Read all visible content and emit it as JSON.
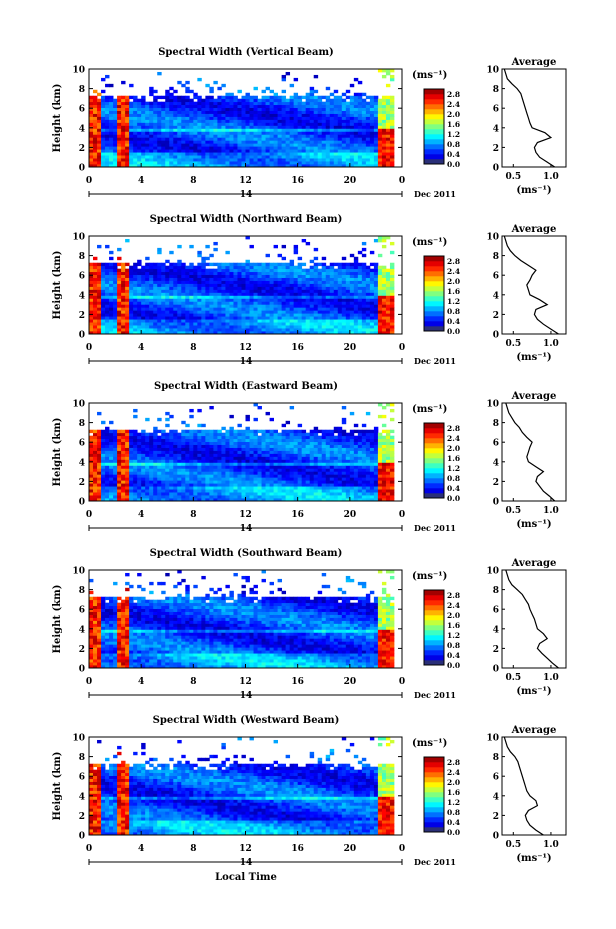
{
  "figure": {
    "xlabel_bottom": "Local Time",
    "date_label": "Dec 2011",
    "day_label": "14",
    "colorbar_unit": "(ms⁻¹)",
    "profile_title": "Average",
    "profile_xlabel": "(ms⁻¹)"
  },
  "chart_data": [
    {
      "type": "heatmap",
      "title": "Spectral Width (Vertical Beam)",
      "xlabel": "",
      "ylabel": "Height (km)",
      "xlim": [
        0,
        24
      ],
      "ylim": [
        0,
        10
      ],
      "xticks": [
        "0",
        "4",
        "8",
        "12",
        "16",
        "20",
        "0"
      ],
      "yticks": [
        "0",
        "2",
        "4",
        "6",
        "8",
        "10"
      ],
      "colorbar": {
        "ticks": [
          "0.0",
          "0.4",
          "0.8",
          "1.2",
          "1.6",
          "2.0",
          "2.4",
          "2.8"
        ],
        "range": [
          0,
          3.0
        ]
      },
      "profile": {
        "title": "Average",
        "xticks": [
          "0.5",
          "1.0"
        ],
        "xlim": [
          0.35,
          1.2
        ],
        "heights": [
          0,
          0.5,
          1,
          1.5,
          2,
          2.5,
          3,
          3.5,
          4,
          4.5,
          5,
          5.5,
          6,
          6.5,
          7,
          7.5,
          8,
          8.5,
          9,
          9.5,
          10
        ],
        "values": [
          1.05,
          0.95,
          0.85,
          0.8,
          0.78,
          0.82,
          1.0,
          0.92,
          0.75,
          0.72,
          0.7,
          0.68,
          0.66,
          0.64,
          0.62,
          0.6,
          0.55,
          0.48,
          0.42,
          0.4,
          0.38
        ]
      }
    },
    {
      "type": "heatmap",
      "title": "Spectral Width (Northward Beam)",
      "xlabel": "",
      "ylabel": "Height (km)",
      "xlim": [
        0,
        24
      ],
      "ylim": [
        0,
        10
      ],
      "xticks": [
        "0",
        "4",
        "8",
        "12",
        "16",
        "20",
        "0"
      ],
      "yticks": [
        "0",
        "2",
        "4",
        "6",
        "8",
        "10"
      ],
      "colorbar": {
        "ticks": [
          "0.0",
          "0.4",
          "0.8",
          "1.2",
          "1.6",
          "2.0",
          "2.4",
          "2.8"
        ],
        "range": [
          0,
          3.0
        ]
      },
      "profile": {
        "title": "Average",
        "xticks": [
          "0.5",
          "1.0"
        ],
        "xlim": [
          0.35,
          1.2
        ],
        "heights": [
          0,
          0.5,
          1,
          1.5,
          2,
          2.5,
          3,
          3.5,
          4,
          4.5,
          5,
          5.5,
          6,
          6.5,
          7,
          7.5,
          8,
          8.5,
          9,
          9.5,
          10
        ],
        "values": [
          1.1,
          1.0,
          0.9,
          0.82,
          0.78,
          0.8,
          0.95,
          0.85,
          0.72,
          0.7,
          0.68,
          0.72,
          0.75,
          0.8,
          0.7,
          0.6,
          0.52,
          0.46,
          0.42,
          0.4,
          0.38
        ]
      }
    },
    {
      "type": "heatmap",
      "title": "Spectral Width (Eastward Beam)",
      "xlabel": "",
      "ylabel": "Height (km)",
      "xlim": [
        0,
        24
      ],
      "ylim": [
        0,
        10
      ],
      "xticks": [
        "0",
        "4",
        "8",
        "12",
        "16",
        "20",
        "0"
      ],
      "yticks": [
        "0",
        "2",
        "4",
        "6",
        "8",
        "10"
      ],
      "colorbar": {
        "ticks": [
          "0.0",
          "0.4",
          "0.8",
          "1.2",
          "1.6",
          "2.0",
          "2.4",
          "2.8"
        ],
        "range": [
          0,
          3.0
        ]
      },
      "profile": {
        "title": "Average",
        "xticks": [
          "0.5",
          "1.0"
        ],
        "xlim": [
          0.35,
          1.2
        ],
        "heights": [
          0,
          0.5,
          1,
          1.5,
          2,
          2.5,
          3,
          3.5,
          4,
          4.5,
          5,
          5.5,
          6,
          6.5,
          7,
          7.5,
          8,
          8.5,
          9,
          9.5,
          10
        ],
        "values": [
          1.05,
          0.98,
          0.9,
          0.85,
          0.8,
          0.82,
          0.9,
          0.8,
          0.7,
          0.68,
          0.7,
          0.72,
          0.75,
          0.68,
          0.62,
          0.58,
          0.52,
          0.48,
          0.44,
          0.42,
          0.4
        ]
      }
    },
    {
      "type": "heatmap",
      "title": "Spectral Width (Southward Beam)",
      "xlabel": "",
      "ylabel": "Height (km)",
      "xlim": [
        0,
        24
      ],
      "ylim": [
        0,
        10
      ],
      "xticks": [
        "0",
        "4",
        "8",
        "12",
        "16",
        "20",
        "0"
      ],
      "yticks": [
        "0",
        "2",
        "4",
        "6",
        "8",
        "10"
      ],
      "colorbar": {
        "ticks": [
          "0.0",
          "0.4",
          "0.8",
          "1.2",
          "1.6",
          "2.0",
          "2.4",
          "2.8"
        ],
        "range": [
          0,
          3.0
        ]
      },
      "profile": {
        "title": "Average",
        "xticks": [
          "0.5",
          "1.0"
        ],
        "xlim": [
          0.35,
          1.2
        ],
        "heights": [
          0,
          0.5,
          1,
          1.5,
          2,
          2.5,
          3,
          3.5,
          4,
          4.5,
          5,
          5.5,
          6,
          6.5,
          7,
          7.5,
          8,
          8.5,
          9,
          9.5,
          10
        ],
        "values": [
          1.1,
          1.02,
          0.95,
          0.88,
          0.82,
          0.85,
          0.95,
          0.9,
          0.82,
          0.8,
          0.78,
          0.75,
          0.72,
          0.7,
          0.66,
          0.62,
          0.55,
          0.48,
          0.44,
          0.42,
          0.4
        ]
      }
    },
    {
      "type": "heatmap",
      "title": "Spectral Width (Westward Beam)",
      "xlabel": "Local Time",
      "ylabel": "Height (km)",
      "xlim": [
        0,
        24
      ],
      "ylim": [
        0,
        10
      ],
      "xticks": [
        "0",
        "4",
        "8",
        "12",
        "16",
        "20",
        "0"
      ],
      "yticks": [
        "0",
        "2",
        "4",
        "6",
        "8",
        "10"
      ],
      "colorbar": {
        "ticks": [
          "0.0",
          "0.4",
          "0.8",
          "1.2",
          "1.6",
          "2.0",
          "2.4",
          "2.8"
        ],
        "range": [
          0,
          3.0
        ]
      },
      "profile": {
        "title": "Average",
        "xticks": [
          "0.5",
          "1.0"
        ],
        "xlim": [
          0.35,
          1.2
        ],
        "heights": [
          0,
          0.5,
          1,
          1.5,
          2,
          2.5,
          3,
          3.5,
          4,
          4.5,
          5,
          5.5,
          6,
          6.5,
          7,
          7.5,
          8,
          8.5,
          9,
          9.5,
          10
        ],
        "values": [
          0.9,
          0.8,
          0.72,
          0.68,
          0.66,
          0.7,
          0.82,
          0.8,
          0.72,
          0.68,
          0.66,
          0.64,
          0.62,
          0.6,
          0.58,
          0.56,
          0.52,
          0.46,
          0.42,
          0.4,
          0.38
        ]
      }
    }
  ]
}
